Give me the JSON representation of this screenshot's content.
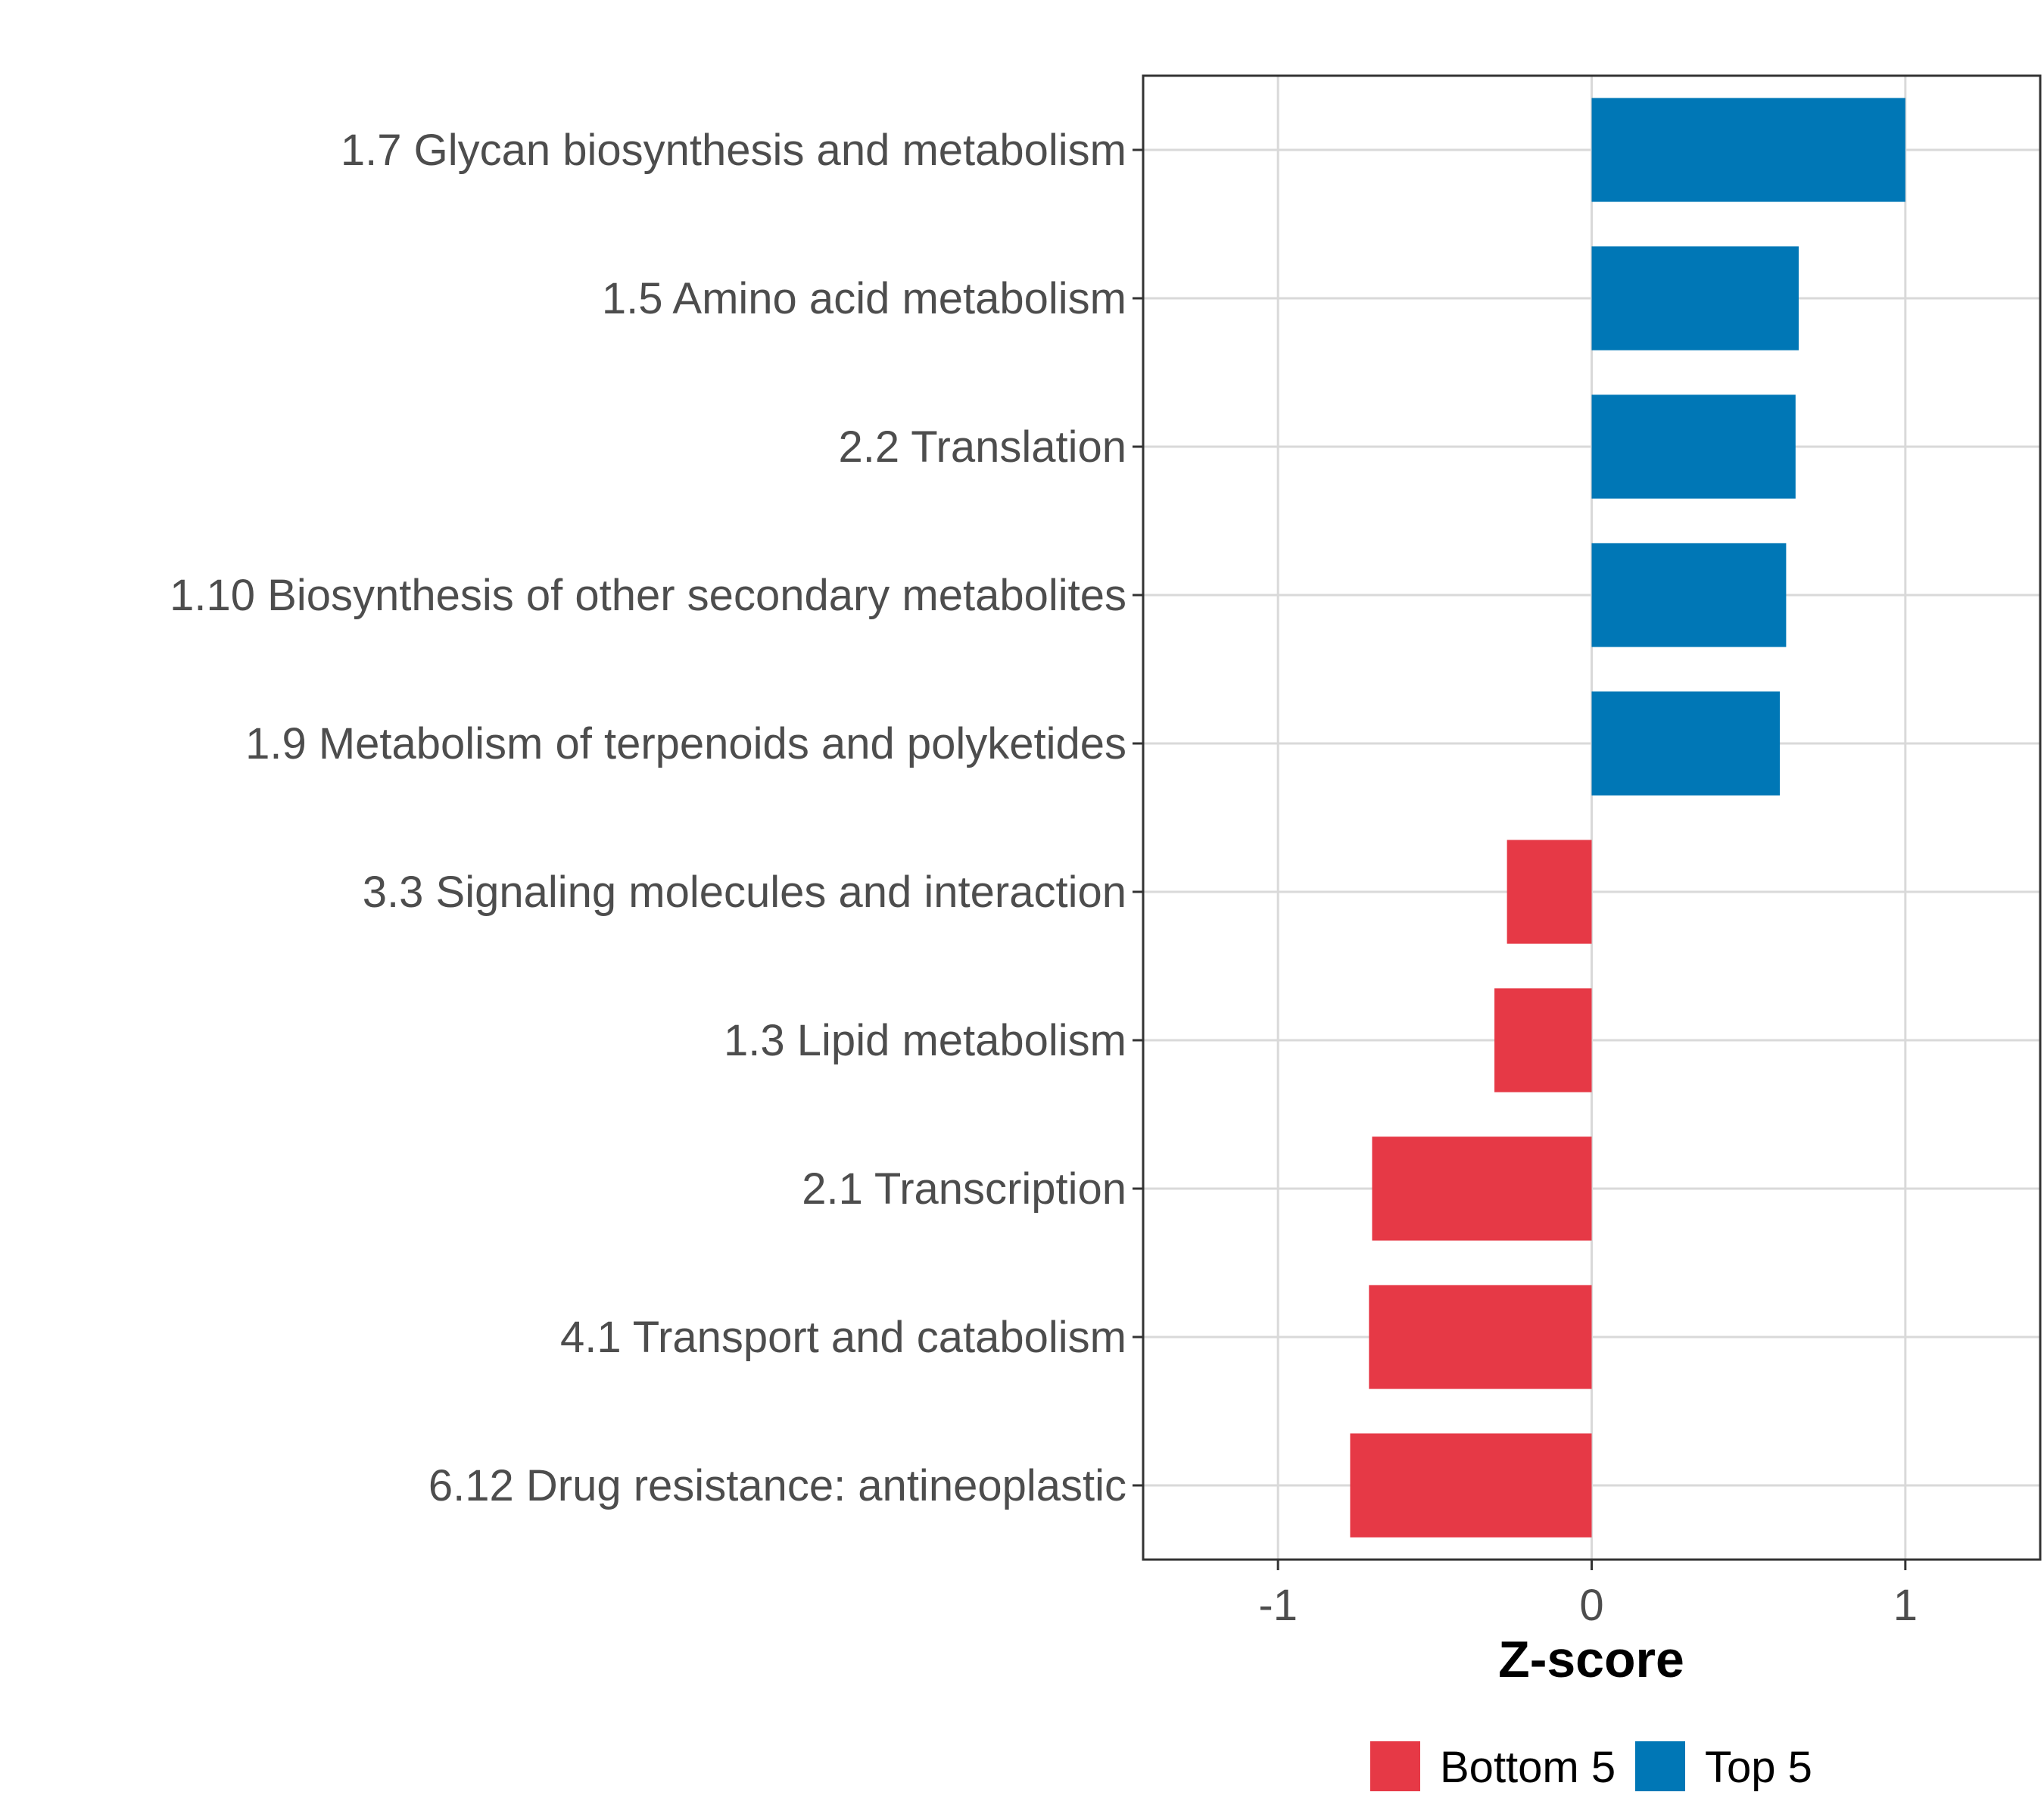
{
  "chart_data": {
    "type": "bar",
    "orientation": "horizontal",
    "xlabel": "Z-score",
    "xlim": [
      -1.43,
      1.43
    ],
    "xticks": [
      -1,
      0,
      1
    ],
    "xtick_labels": [
      "-1",
      "0",
      "1"
    ],
    "grid": true,
    "legend_position": "bottom",
    "categories": [
      "1.7 Glycan biosynthesis and metabolism",
      "1.5 Amino acid metabolism",
      "2.2 Translation",
      "1.10 Biosynthesis of other secondary metabolites",
      "1.9 Metabolism of terpenoids and polyketides",
      "3.3 Signaling molecules and interaction",
      "1.3 Lipid metabolism",
      "2.1 Transcription",
      "4.1 Transport and catabolism",
      "6.12 Drug resistance: antineoplastic"
    ],
    "values": [
      1.0,
      0.66,
      0.65,
      0.62,
      0.6,
      -0.27,
      -0.31,
      -0.7,
      -0.71,
      -0.77
    ],
    "groups": [
      "Top 5",
      "Top 5",
      "Top 5",
      "Top 5",
      "Top 5",
      "Bottom 5",
      "Bottom 5",
      "Bottom 5",
      "Bottom 5",
      "Bottom 5"
    ],
    "legend": [
      {
        "name": "Bottom 5",
        "color": "#e63946"
      },
      {
        "name": "Top 5",
        "color": "#0077b6"
      }
    ]
  }
}
